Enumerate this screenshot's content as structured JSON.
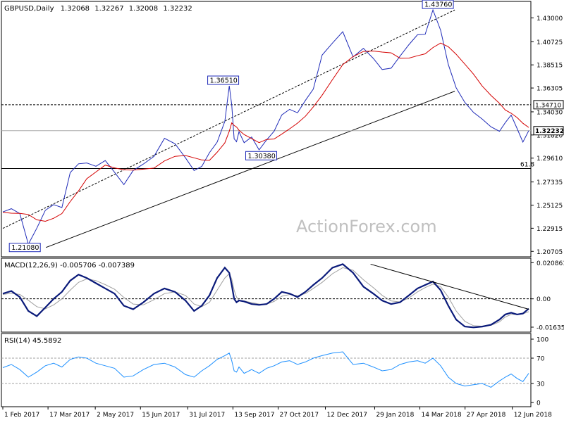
{
  "chart_data": {
    "type": "line",
    "header": {
      "symbol": "GBPUSD,Daily",
      "open": "1.32068",
      "high": "1.32267",
      "low": "1.32008",
      "close": "1.32232"
    },
    "watermark": "ActionForex.com",
    "x_dates": [
      "2017-02-01",
      "2017-03-15",
      "2017-04-25",
      "2017-06-10",
      "2017-08-01",
      "2017-09-08",
      "2017-09-20",
      "2017-10-27",
      "2017-12-05",
      "2018-01-25",
      "2018-03-10",
      "2018-04-17",
      "2018-05-30",
      "2018-06-28"
    ],
    "x_ticks": [
      "1 Feb 2017",
      "17 Mar 2017",
      "2 May 2017",
      "15 Jun 2017",
      "31 Jul 2017",
      "13 Sep 2017",
      "27 Oct 2017",
      "12 Dec 2017",
      "29 Jan 2018",
      "14 Mar 2018",
      "27 Apr 2018",
      "12 Jun 2018"
    ],
    "price_panel": {
      "ylim": [
        1.2032,
        1.4444
      ],
      "y_ticks": [
        "1.43000",
        "1.40725",
        "1.38515",
        "1.36305",
        "1.34030",
        "1.31820",
        "1.29610",
        "1.27335",
        "1.25125",
        "1.22915",
        "1.20705"
      ],
      "close": [
        1.2447,
        1.2478,
        1.2432,
        1.2139,
        1.2292,
        1.2463,
        1.2517,
        1.2489,
        1.2823,
        1.2907,
        1.2915,
        1.2883,
        1.2938,
        1.2826,
        1.2708,
        1.2843,
        1.2905,
        1.2977,
        1.315,
        1.3098,
        1.2964,
        1.2843,
        1.2882,
        1.3013,
        1.3114,
        1.3312,
        1.3651,
        1.3469,
        1.3146,
        1.3118,
        1.3213,
        1.3108,
        1.3163,
        1.304,
        1.3134,
        1.3218,
        1.3374,
        1.3427,
        1.3394,
        1.3512,
        1.362,
        1.3945,
        1.406,
        1.4168,
        1.3927,
        1.4009,
        1.3913,
        1.3807,
        1.382,
        1.3935,
        1.4044,
        1.4139,
        1.4144,
        1.4376,
        1.4182,
        1.3855,
        1.3633,
        1.3493,
        1.3397,
        1.3334,
        1.326,
        1.3217,
        1.33,
        1.3372,
        1.3245,
        1.3114,
        1.3223
      ],
      "ma": [
        1.2443,
        1.2435,
        1.2434,
        1.2423,
        1.2372,
        1.2358,
        1.2387,
        1.2432,
        1.2546,
        1.2648,
        1.2764,
        1.2829,
        1.2895,
        1.2868,
        1.285,
        1.2846,
        1.2856,
        1.2866,
        1.2934,
        1.2978,
        1.2986,
        1.2964,
        1.2944,
        1.294,
        1.3017,
        1.3106,
        1.3217,
        1.3298,
        1.3273,
        1.3258,
        1.3227,
        1.3186,
        1.3148,
        1.3109,
        1.3139,
        1.3144,
        1.319,
        1.3241,
        1.3295,
        1.3361,
        1.345,
        1.3562,
        1.3711,
        1.3854,
        1.3931,
        1.398,
        1.3984,
        1.3974,
        1.3966,
        1.3915,
        1.3916,
        1.3939,
        1.3957,
        1.4017,
        1.406,
        1.4025,
        1.3953,
        1.3859,
        1.3763,
        1.3649,
        1.356,
        1.3485,
        1.3421,
        1.339,
        1.3349,
        1.3294,
        1.3254
      ],
      "labels": [
        {
          "text": "1.21080",
          "date": "2017-03-15",
          "value": 1.2108
        },
        {
          "text": "1.36510",
          "date": "2017-09-20",
          "value": 1.3651
        },
        {
          "text": "1.30380",
          "date": "2017-10-27",
          "value": 1.3038
        },
        {
          "text": "1.43760",
          "date": "2018-04-17",
          "value": 1.4376
        }
      ],
      "h_lines": [
        {
          "value": 1.3471,
          "label": "1.34710",
          "style": "dashed"
        },
        {
          "value": 1.3223,
          "label": "1.32232",
          "style": "solid-gray",
          "current": true
        },
        {
          "value": 1.2862,
          "label": "61.8",
          "style": "solid"
        }
      ],
      "channel_lower": [
        [
          "2017-03-15",
          1.2108
        ],
        [
          "2018-04-17",
          1.36
        ]
      ],
      "channel_upper": [
        [
          "2017-02-01",
          1.229
        ],
        [
          "2018-04-17",
          1.4376
        ]
      ]
    },
    "macd_panel": {
      "label": "MACD(12,26,9) -0.005706 -0.007389",
      "ylim": [
        -0.0184,
        0.0218
      ],
      "y_ticks": [
        "0.020861",
        "0.00",
        "-0.016357"
      ],
      "macd": [
        0.003,
        0.0045,
        0.001,
        -0.007,
        -0.01,
        -0.005,
        0.0,
        0.004,
        0.0105,
        0.014,
        0.012,
        0.009,
        0.006,
        0.003,
        -0.004,
        -0.006,
        -0.002,
        0.003,
        0.006,
        0.004,
        -0.001,
        -0.007,
        -0.004,
        0.002,
        0.012,
        0.018,
        0.015,
        0.008,
        0.0,
        -0.002,
        -0.001,
        -0.0015,
        -0.003,
        -0.0035,
        -0.003,
        0.0,
        0.004,
        0.003,
        0.001,
        0.004,
        0.008,
        0.012,
        0.018,
        0.02,
        0.015,
        0.007,
        0.003,
        -0.001,
        -0.003,
        -0.002,
        0.002,
        0.006,
        0.008,
        0.01,
        0.005,
        -0.004,
        -0.012,
        -0.016,
        -0.0165,
        -0.016,
        -0.015,
        -0.012,
        -0.009,
        -0.008,
        -0.009,
        -0.0085,
        -0.0057
      ],
      "signal": [
        0.0025,
        0.0032,
        0.0025,
        -0.0008,
        -0.0045,
        -0.0058,
        -0.0035,
        0.0,
        0.005,
        0.0095,
        0.0115,
        0.0105,
        0.0082,
        0.0055,
        0.0008,
        -0.003,
        -0.0035,
        -0.0005,
        0.003,
        0.004,
        0.002,
        -0.003,
        -0.0045,
        -0.002,
        0.005,
        0.012,
        0.0145,
        0.0115,
        0.005,
        0.001,
        -0.0008,
        -0.0012,
        -0.0022,
        -0.003,
        -0.0031,
        -0.0015,
        0.0015,
        0.0025,
        0.0018,
        0.003,
        0.006,
        0.0095,
        0.0145,
        0.018,
        0.0165,
        0.011,
        0.0065,
        0.002,
        -0.0012,
        -0.0018,
        0.0005,
        0.004,
        0.0065,
        0.0085,
        0.007,
        0.001,
        -0.007,
        -0.013,
        -0.0155,
        -0.0158,
        -0.0153,
        -0.0133,
        -0.0105,
        -0.009,
        -0.009,
        -0.0087,
        -0.0074
      ],
      "trendline": [
        [
          "2018-01-25",
          0.02
        ],
        [
          "2018-06-28",
          -0.006
        ]
      ]
    },
    "rsi_panel": {
      "label": "RSI(14) 45.5892",
      "ylim": [
        0,
        100
      ],
      "y_ticks": [
        "100",
        "70",
        "30",
        "0"
      ],
      "levels": [
        70,
        30
      ],
      "rsi": [
        55,
        60,
        52,
        40,
        48,
        58,
        62,
        56,
        68,
        72,
        70,
        62,
        58,
        54,
        40,
        42,
        52,
        60,
        62,
        56,
        44,
        40,
        50,
        58,
        68,
        74,
        78,
        66,
        50,
        48,
        56,
        46,
        52,
        46,
        54,
        58,
        64,
        66,
        60,
        64,
        70,
        74,
        78,
        80,
        60,
        62,
        56,
        50,
        52,
        60,
        64,
        66,
        62,
        70,
        58,
        40,
        30,
        26,
        28,
        30,
        24,
        34,
        40,
        45,
        38,
        33,
        46
      ]
    }
  }
}
